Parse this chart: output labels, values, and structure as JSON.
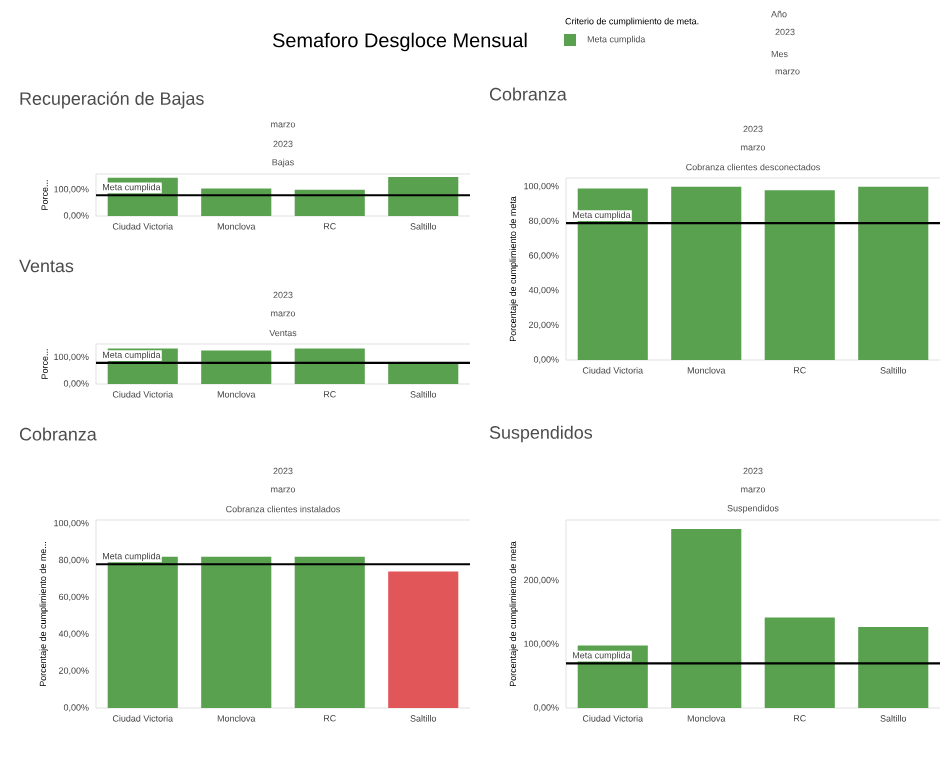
{
  "chart_data": [
    {
      "type": "other",
      "title": "Semaforo Desgloce Mensual",
      "legend_title": "Criterio de cumplimiento de meta.",
      "color": "#59a14f",
      "annotations": [
        "Meta cumplida",
        "Año",
        "2023",
        "Mes",
        "marzo"
      ]
    },
    {
      "type": "bar",
      "title": "Recuperación de Bajas",
      "ylabel": "Porce...",
      "annotations": [
        "marzo",
        "2023",
        "Bajas"
      ],
      "categories": [
        "Ciudad Victoria",
        "Monclova",
        "RC",
        "Saltillo"
      ],
      "values": [
        146,
        105,
        100,
        149
      ],
      "colors": [
        "#59a14f",
        "#59a14f",
        "#59a14f",
        "#59a14f"
      ],
      "ylim": [
        0,
        160
      ],
      "yticks": [
        {
          "value": 0,
          "label": "0,00%"
        },
        {
          "value": 100,
          "label": "100,00%"
        }
      ],
      "ref_lines": [
        {
          "axis": "y",
          "value": 79,
          "label": "Meta cumplida",
          "color": "#000000"
        }
      ]
    },
    {
      "type": "bar",
      "title": "Ventas",
      "ylabel": "Porce...",
      "annotations": [
        "2023",
        "marzo",
        "Ventas"
      ],
      "categories": [
        "Ciudad Victoria",
        "Monclova",
        "RC",
        "Saltillo"
      ],
      "values": [
        133,
        126,
        133,
        81
      ],
      "colors": [
        "#59a14f",
        "#59a14f",
        "#59a14f",
        "#59a14f"
      ],
      "ylim": [
        0,
        150
      ],
      "yticks": [
        {
          "value": 0,
          "label": "0,00%"
        },
        {
          "value": 100,
          "label": "100,00%"
        }
      ],
      "ref_lines": [
        {
          "axis": "y",
          "value": 79,
          "label": "Meta cumplida",
          "color": "#000000"
        }
      ]
    },
    {
      "type": "bar",
      "title": "Cobranza",
      "ylabel": "Porcentaje de cumplimiento de meta",
      "annotations": [
        "2023",
        "marzo",
        "Cobranza clientes desconectados"
      ],
      "categories": [
        "Ciudad Victoria",
        "Monclova",
        "RC",
        "Saltillo"
      ],
      "values": [
        99,
        100,
        98,
        100
      ],
      "colors": [
        "#59a14f",
        "#59a14f",
        "#59a14f",
        "#59a14f"
      ],
      "ylim": [
        0,
        105
      ],
      "yticks": [
        {
          "value": 0,
          "label": "0,00%"
        },
        {
          "value": 20,
          "label": "20,00%"
        },
        {
          "value": 40,
          "label": "40,00%"
        },
        {
          "value": 60,
          "label": "60,00%"
        },
        {
          "value": 80,
          "label": "80,00%"
        },
        {
          "value": 100,
          "label": "100,00%"
        }
      ],
      "ref_lines": [
        {
          "axis": "y",
          "value": 79,
          "label": "Meta cumplida",
          "color": "#000000"
        }
      ]
    },
    {
      "type": "bar",
      "title": "Cobranza",
      "ylabel": "Porcentaje de cumplimiento de me...",
      "annotations": [
        "2023",
        "marzo",
        "Cobranza clientes instalados"
      ],
      "categories": [
        "Ciudad Victoria",
        "Monclova",
        "RC",
        "Saltillo"
      ],
      "values": [
        82,
        82,
        82,
        74
      ],
      "colors": [
        "#59a14f",
        "#59a14f",
        "#59a14f",
        "#e15759"
      ],
      "ylim": [
        0,
        102
      ],
      "yticks": [
        {
          "value": 0,
          "label": "0,00%"
        },
        {
          "value": 20,
          "label": "20,00%"
        },
        {
          "value": 40,
          "label": "40,00%"
        },
        {
          "value": 60,
          "label": "60,00%"
        },
        {
          "value": 80,
          "label": "80,00%"
        },
        {
          "value": 100,
          "label": "100,00%"
        }
      ],
      "ref_lines": [
        {
          "axis": "y",
          "value": 78,
          "label": "Meta cumplida",
          "color": "#000000"
        }
      ]
    },
    {
      "type": "bar",
      "title": "Suspendidos",
      "ylabel": "Porcentaje de cumplimiento de meta",
      "annotations": [
        "2023",
        "marzo",
        "Suspendidos"
      ],
      "categories": [
        "Ciudad Victoria",
        "Monclova",
        "RC",
        "Saltillo"
      ],
      "values": [
        98,
        281,
        142,
        127
      ],
      "colors": [
        "#59a14f",
        "#59a14f",
        "#59a14f",
        "#59a14f"
      ],
      "ylim": [
        0,
        295
      ],
      "yticks": [
        {
          "value": 0,
          "label": "0,00%"
        },
        {
          "value": 100,
          "label": "100,00%"
        },
        {
          "value": 200,
          "label": "200,00%"
        }
      ],
      "ref_lines": [
        {
          "axis": "y",
          "value": 70,
          "label": "Meta cumplida",
          "color": "#000000"
        }
      ]
    }
  ]
}
